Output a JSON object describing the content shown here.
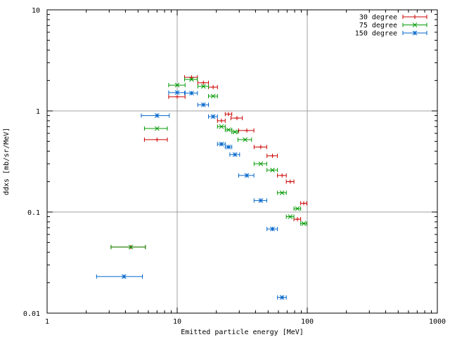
{
  "chart_data": {
    "type": "scatter",
    "xlabel": "Emitted particle energy [MeV]",
    "ylabel": "ddxs [mb/sr/MeV]",
    "xscale": "log",
    "yscale": "log",
    "xlim": [
      1,
      1000
    ],
    "ylim": [
      0.01,
      10
    ],
    "grid": true,
    "legend_position": "top-right",
    "x_ticks": [
      {
        "value": 1,
        "label": "1"
      },
      {
        "value": 10,
        "label": "10"
      },
      {
        "value": 100,
        "label": "100"
      },
      {
        "value": 1000,
        "label": "1000"
      }
    ],
    "y_ticks": [
      {
        "value": 0.01,
        "label": "0.01"
      },
      {
        "value": 0.1,
        "label": "0.1"
      },
      {
        "value": 1,
        "label": "1"
      },
      {
        "value": 10,
        "label": "10"
      }
    ],
    "series": [
      {
        "name": "30 degree",
        "color": "#cc0000",
        "marker": "plus",
        "points": [
          {
            "x": 4.4,
            "xmin": 3.1,
            "xmax": 5.7,
            "y": 0.045
          },
          {
            "x": 7.0,
            "xmin": 5.6,
            "xmax": 8.4,
            "y": 0.52
          },
          {
            "x": 10.0,
            "xmin": 8.6,
            "xmax": 11.5,
            "y": 1.38
          },
          {
            "x": 12.9,
            "xmin": 11.4,
            "xmax": 14.3,
            "y": 2.15
          },
          {
            "x": 15.9,
            "xmin": 14.4,
            "xmax": 17.4,
            "y": 1.9
          },
          {
            "x": 18.9,
            "xmin": 17.4,
            "xmax": 20.4,
            "y": 1.72
          },
          {
            "x": 21.9,
            "xmin": 20.4,
            "xmax": 23.4,
            "y": 0.8
          },
          {
            "x": 24.8,
            "xmin": 23.4,
            "xmax": 26.3,
            "y": 0.93
          },
          {
            "x": 28.8,
            "xmin": 25.9,
            "xmax": 31.7,
            "y": 0.85
          },
          {
            "x": 34.3,
            "xmin": 29.7,
            "xmax": 38.9,
            "y": 0.64
          },
          {
            "x": 43.9,
            "xmin": 39.0,
            "xmax": 48.8,
            "y": 0.44
          },
          {
            "x": 54.0,
            "xmin": 49.0,
            "xmax": 59.0,
            "y": 0.36
          },
          {
            "x": 64.0,
            "xmin": 59.0,
            "xmax": 69.0,
            "y": 0.23
          },
          {
            "x": 74.0,
            "xmin": 69.0,
            "xmax": 79.0,
            "y": 0.2
          },
          {
            "x": 84.0,
            "xmin": 79.0,
            "xmax": 89.0,
            "y": 0.085
          },
          {
            "x": 94.0,
            "xmin": 89.0,
            "xmax": 99.0,
            "y": 0.122
          }
        ]
      },
      {
        "name": "75 degree",
        "color": "#009900",
        "marker": "cross",
        "points": [
          {
            "x": 4.4,
            "xmin": 3.1,
            "xmax": 5.7,
            "y": 0.045
          },
          {
            "x": 7.0,
            "xmin": 5.6,
            "xmax": 8.4,
            "y": 0.67
          },
          {
            "x": 10.0,
            "xmin": 8.6,
            "xmax": 11.5,
            "y": 1.8
          },
          {
            "x": 12.9,
            "xmin": 11.4,
            "xmax": 14.3,
            "y": 2.05
          },
          {
            "x": 15.9,
            "xmin": 14.4,
            "xmax": 17.4,
            "y": 1.75
          },
          {
            "x": 18.9,
            "xmin": 17.4,
            "xmax": 20.4,
            "y": 1.4
          },
          {
            "x": 21.9,
            "xmin": 20.4,
            "xmax": 23.4,
            "y": 0.7
          },
          {
            "x": 24.8,
            "xmin": 23.4,
            "xmax": 26.3,
            "y": 0.65
          },
          {
            "x": 27.8,
            "xmin": 26.3,
            "xmax": 29.3,
            "y": 0.62
          },
          {
            "x": 33.3,
            "xmin": 29.3,
            "xmax": 37.3,
            "y": 0.52
          },
          {
            "x": 43.9,
            "xmin": 39.0,
            "xmax": 48.8,
            "y": 0.3
          },
          {
            "x": 54.0,
            "xmin": 49.0,
            "xmax": 59.0,
            "y": 0.26
          },
          {
            "x": 64.0,
            "xmin": 59.0,
            "xmax": 69.0,
            "y": 0.155
          },
          {
            "x": 74.0,
            "xmin": 69.0,
            "xmax": 79.0,
            "y": 0.09
          },
          {
            "x": 84.0,
            "xmin": 79.0,
            "xmax": 89.0,
            "y": 0.108
          },
          {
            "x": 94.0,
            "xmin": 89.0,
            "xmax": 99.0,
            "y": 0.077
          }
        ]
      },
      {
        "name": "150 degree",
        "color": "#0066cc",
        "marker": "star",
        "points": [
          {
            "x": 3.9,
            "xmin": 2.4,
            "xmax": 5.4,
            "y": 0.023
          },
          {
            "x": 7.0,
            "xmin": 5.3,
            "xmax": 8.7,
            "y": 0.9
          },
          {
            "x": 10.0,
            "xmin": 8.6,
            "xmax": 11.5,
            "y": 1.52
          },
          {
            "x": 12.9,
            "xmin": 11.4,
            "xmax": 14.3,
            "y": 1.5
          },
          {
            "x": 15.9,
            "xmin": 14.4,
            "xmax": 17.4,
            "y": 1.15
          },
          {
            "x": 18.9,
            "xmin": 17.4,
            "xmax": 20.4,
            "y": 0.88
          },
          {
            "x": 21.9,
            "xmin": 20.4,
            "xmax": 23.4,
            "y": 0.47
          },
          {
            "x": 24.8,
            "xmin": 23.4,
            "xmax": 26.3,
            "y": 0.44
          },
          {
            "x": 27.8,
            "xmin": 25.4,
            "xmax": 30.2,
            "y": 0.37
          },
          {
            "x": 34.3,
            "xmin": 29.7,
            "xmax": 38.9,
            "y": 0.23
          },
          {
            "x": 43.9,
            "xmin": 39.0,
            "xmax": 48.8,
            "y": 0.13
          },
          {
            "x": 54.0,
            "xmin": 49.0,
            "xmax": 59.0,
            "y": 0.068
          },
          {
            "x": 64.0,
            "xmin": 59.0,
            "xmax": 69.0,
            "y": 0.0143
          }
        ]
      }
    ]
  }
}
